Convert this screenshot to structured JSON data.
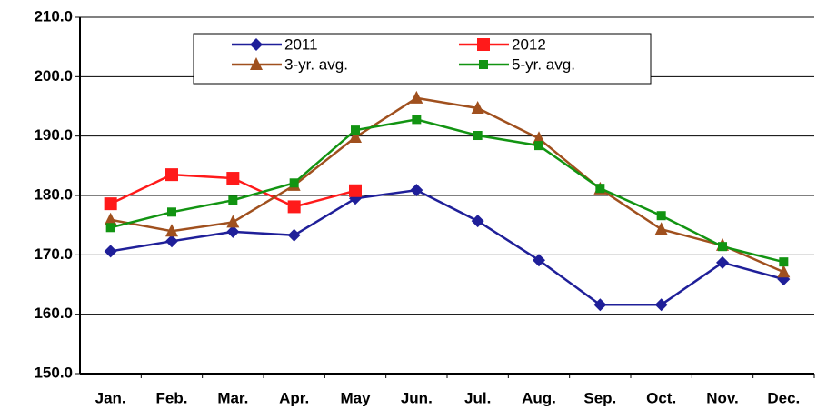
{
  "chart_data": {
    "type": "line",
    "categories": [
      "Jan.",
      "Feb.",
      "Mar.",
      "Apr.",
      "May",
      "Jun.",
      "Jul.",
      "Aug.",
      "Sep.",
      "Oct.",
      "Nov.",
      "Dec."
    ],
    "series": [
      {
        "name": "2011",
        "color": "#1f1f99",
        "marker": "diamond",
        "values": [
          170.6,
          172.3,
          173.9,
          173.3,
          179.5,
          180.9,
          175.7,
          169.1,
          161.6,
          161.6,
          168.7,
          165.9
        ]
      },
      {
        "name": "2012",
        "color": "#ff1a1a",
        "marker": "square",
        "values": [
          178.6,
          183.5,
          182.9,
          178.1,
          180.8,
          null,
          null,
          null,
          null,
          null,
          null,
          null
        ]
      },
      {
        "name": "3-yr. avg.",
        "color": "#a0501e",
        "marker": "triangle",
        "values": [
          175.9,
          174.0,
          175.5,
          181.7,
          189.8,
          196.4,
          194.7,
          189.6,
          181.1,
          174.3,
          171.6,
          167.1
        ]
      },
      {
        "name": "5-yr. avg.",
        "color": "#129412",
        "marker": "small-square",
        "values": [
          174.6,
          177.2,
          179.2,
          182.1,
          191.0,
          192.8,
          190.1,
          188.4,
          181.2,
          176.6,
          171.4,
          168.8
        ]
      }
    ],
    "ylim": [
      150,
      210
    ],
    "yticks": [
      {
        "value": 150,
        "label": "150.0"
      },
      {
        "value": 160,
        "label": "160.0"
      },
      {
        "value": 170,
        "label": "170.0"
      },
      {
        "value": 180,
        "label": "180.0"
      },
      {
        "value": 190,
        "label": "190.0"
      },
      {
        "value": 200,
        "label": "200.0"
      },
      {
        "value": 210,
        "label": "210.0"
      }
    ],
    "grid": true,
    "legend": "top"
  }
}
